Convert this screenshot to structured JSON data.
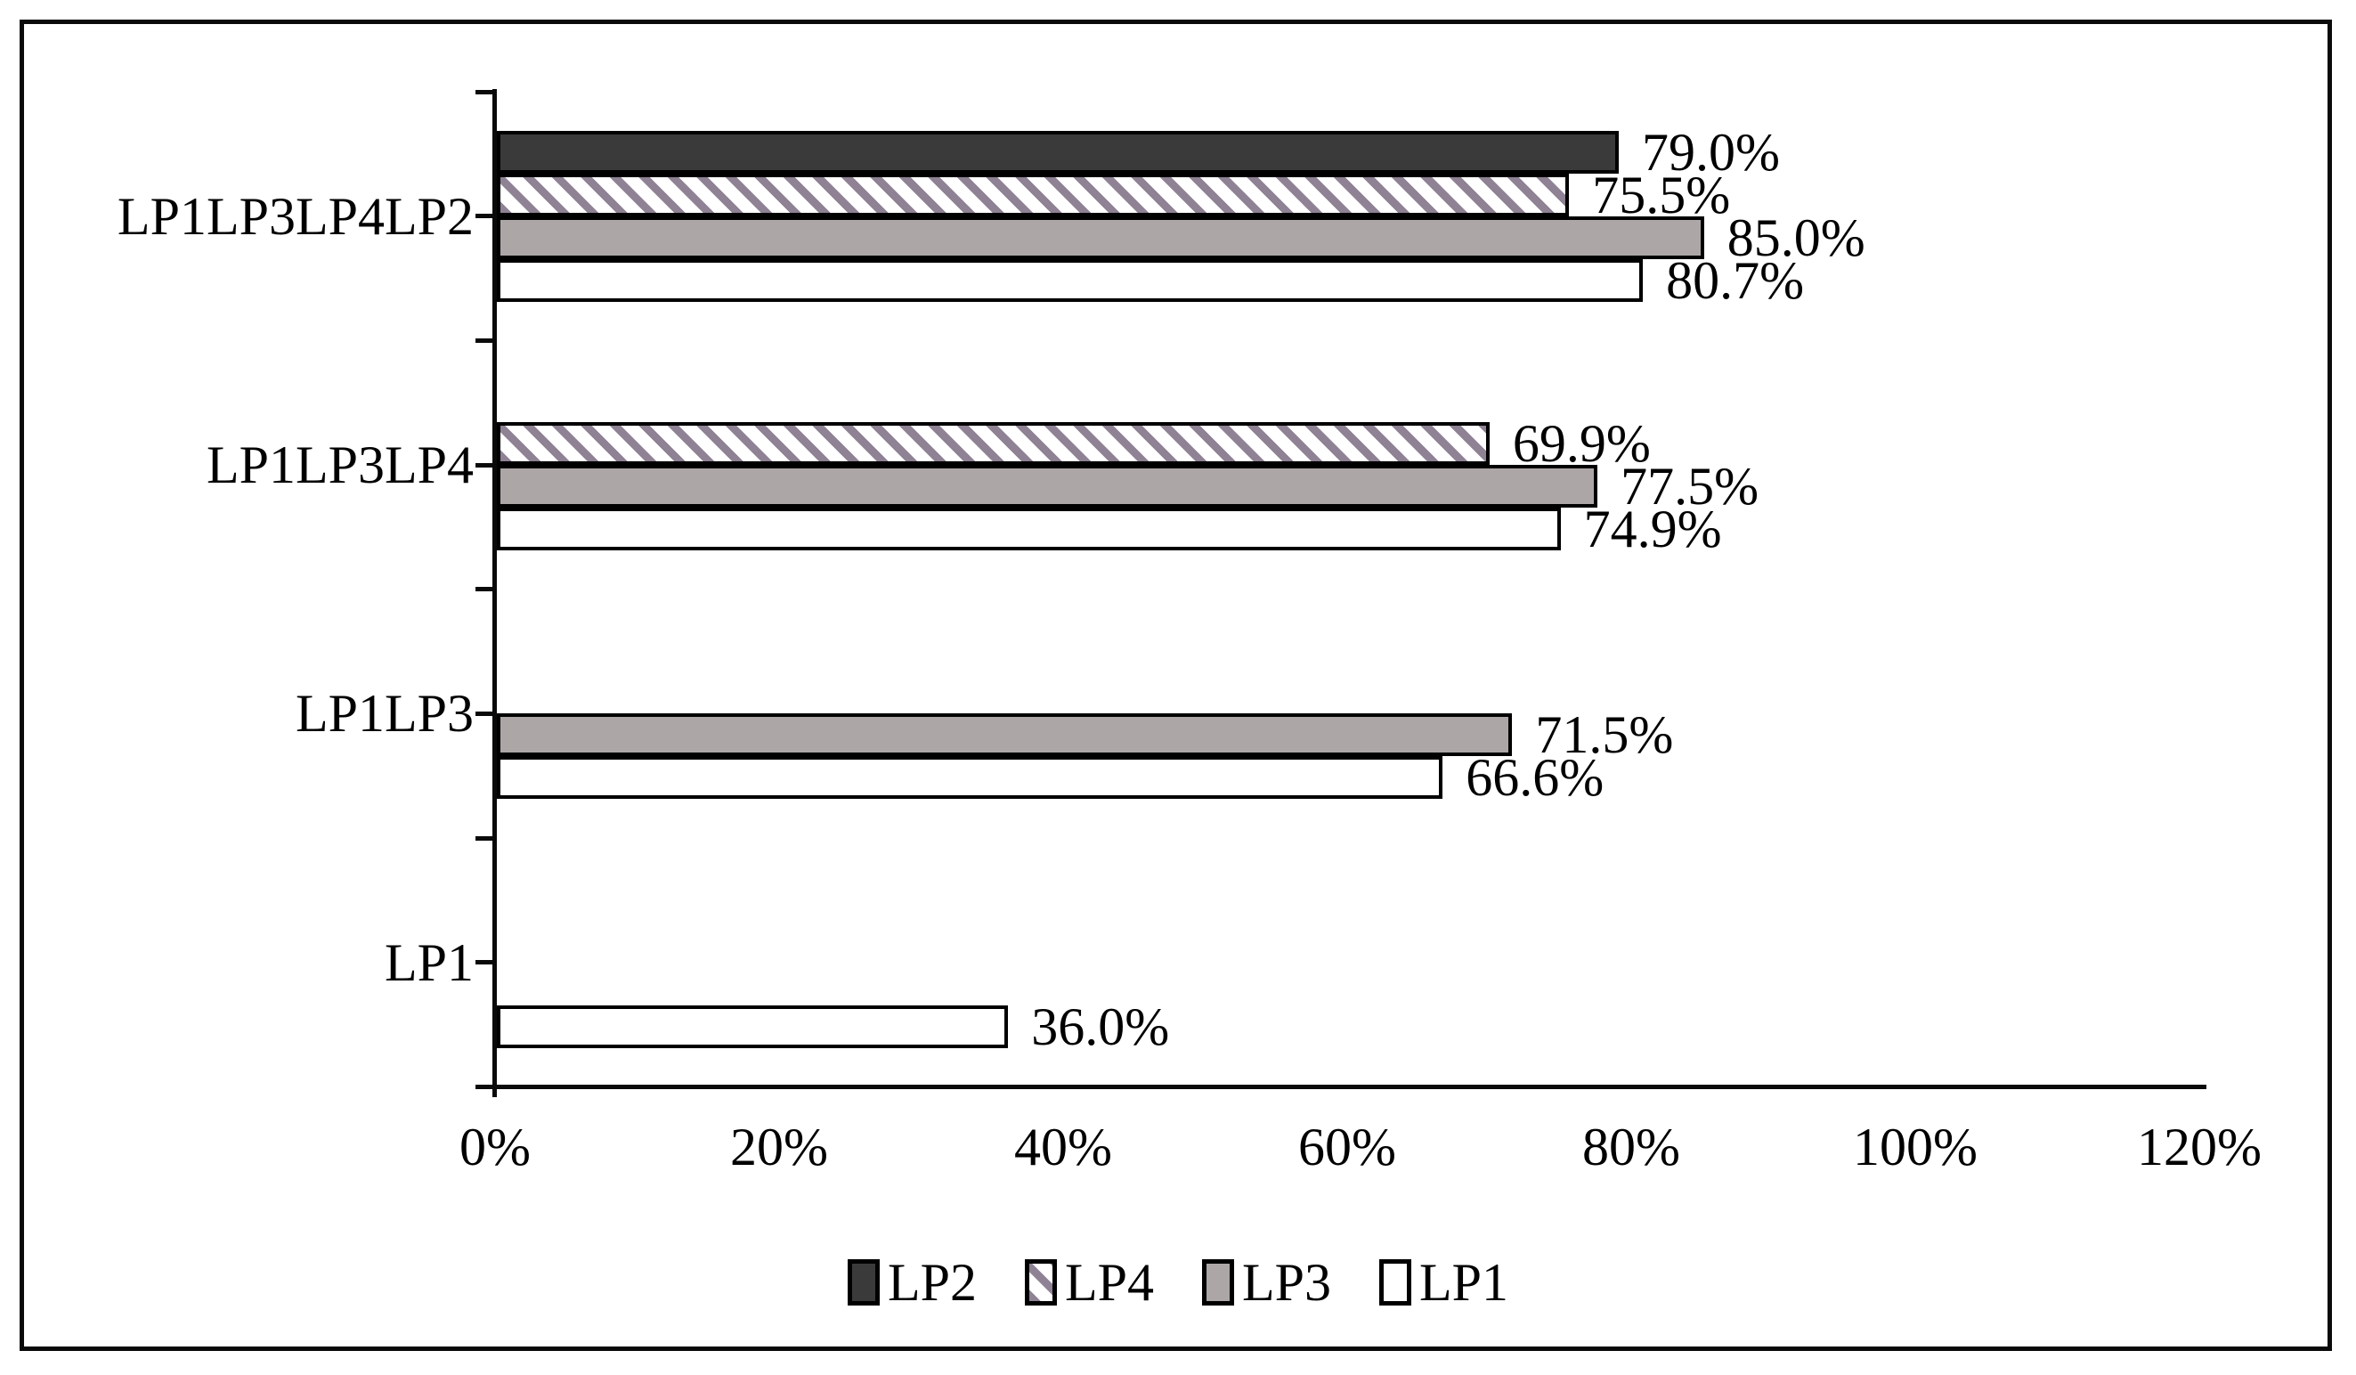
{
  "chart_data": {
    "type": "bar",
    "orientation": "horizontal",
    "title": "",
    "categories": [
      "LP1LP3LP4LP2",
      "LP1LP3LP4",
      "LP1LP3",
      "LP1"
    ],
    "series": [
      {
        "name": "LP2",
        "style": "dark",
        "values": [
          79.0,
          null,
          null,
          null
        ],
        "labels": [
          "79.0%",
          "",
          "",
          ""
        ]
      },
      {
        "name": "LP4",
        "style": "hatch",
        "values": [
          75.5,
          69.9,
          null,
          null
        ],
        "labels": [
          "75.5%",
          "69.9%",
          "",
          ""
        ]
      },
      {
        "name": "LP3",
        "style": "gray",
        "values": [
          85.0,
          77.5,
          71.5,
          null
        ],
        "labels": [
          "85.0%",
          "77.5%",
          "71.5%",
          ""
        ]
      },
      {
        "name": "LP1",
        "style": "white",
        "values": [
          80.7,
          74.9,
          66.6,
          36.0
        ],
        "labels": [
          "80.7%",
          "74.9%",
          "66.6%",
          "36.0%"
        ]
      }
    ],
    "x_axis": {
      "tick_labels": [
        "0%",
        "20%",
        "40%",
        "60%",
        "80%",
        "100%",
        "120%"
      ],
      "min": 0,
      "max": 120,
      "unit": "%"
    },
    "legend": {
      "position": "bottom",
      "entries": [
        "LP2",
        "LP4",
        "LP3",
        "LP1"
      ]
    },
    "colors": {
      "dark": "#3a3a3a",
      "gray": "#aca6a7",
      "white": "#ffffff",
      "hatch_stripe": "#8f8294",
      "hatch_bg": "#ffffff",
      "axis": "#0a0a0a",
      "text": "#000000"
    },
    "layout_hints": {
      "grid": "off",
      "data_labels": "outside-end",
      "bar_lane_order_top_to_bottom": [
        "LP2",
        "LP4",
        "LP3",
        "LP1"
      ]
    }
  }
}
